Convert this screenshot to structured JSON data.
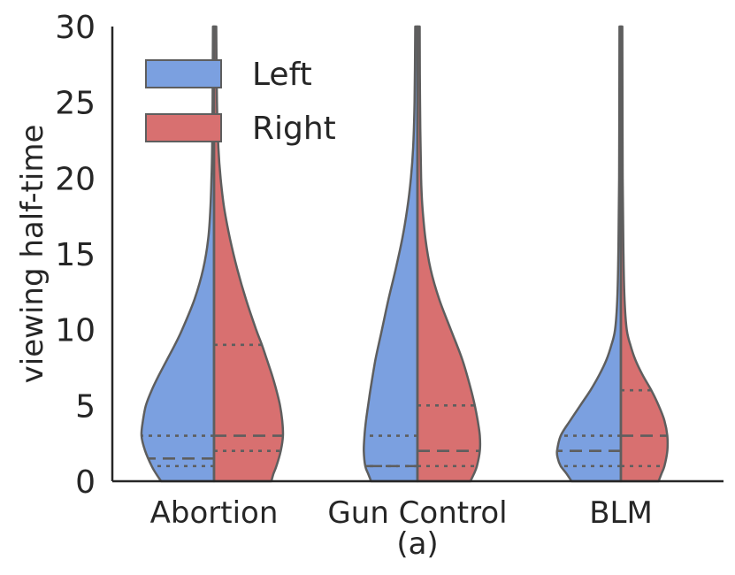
{
  "chart_data": {
    "type": "violin",
    "title": "",
    "subcaption": "(a)",
    "ylabel": "viewing half-time",
    "xlabel": "",
    "ylim": [
      0,
      30
    ],
    "yticks": [
      0,
      5,
      10,
      15,
      20,
      25,
      30
    ],
    "categories": [
      "Abortion",
      "Gun Control",
      "BLM"
    ],
    "legend": {
      "placement": "top-left",
      "entries": [
        {
          "name": "Left",
          "color": "#7ba0e0"
        },
        {
          "name": "Right",
          "color": "#d87070"
        }
      ]
    },
    "series": [
      {
        "name": "Left",
        "color": "#7ba0e0",
        "side": "left",
        "groups": [
          {
            "category": "Abortion",
            "quartiles": {
              "q1": 1.0,
              "median": 1.5,
              "q3": 3.0
            },
            "profile": [
              [
                0,
                0.73
              ],
              [
                0.5,
                0.8
              ],
              [
                1,
                0.86
              ],
              [
                2,
                0.95
              ],
              [
                3,
                1.0
              ],
              [
                4,
                0.98
              ],
              [
                5,
                0.94
              ],
              [
                6,
                0.86
              ],
              [
                7,
                0.76
              ],
              [
                8,
                0.65
              ],
              [
                9,
                0.54
              ],
              [
                10,
                0.44
              ],
              [
                12,
                0.27
              ],
              [
                14,
                0.15
              ],
              [
                16,
                0.08
              ],
              [
                18,
                0.05
              ],
              [
                20,
                0.035
              ],
              [
                22,
                0.025
              ],
              [
                25,
                0.02
              ],
              [
                30,
                0.015
              ]
            ]
          },
          {
            "category": "Gun Control",
            "quartiles": {
              "q1": 1.0,
              "median": 1.0,
              "q3": 3.0
            },
            "profile": [
              [
                0,
                0.64
              ],
              [
                0.5,
                0.68
              ],
              [
                1,
                0.72
              ],
              [
                2,
                0.74
              ],
              [
                3,
                0.73
              ],
              [
                4,
                0.71
              ],
              [
                5,
                0.68
              ],
              [
                6,
                0.65
              ],
              [
                8,
                0.58
              ],
              [
                10,
                0.49
              ],
              [
                12,
                0.4
              ],
              [
                14,
                0.3
              ],
              [
                16,
                0.21
              ],
              [
                18,
                0.14
              ],
              [
                20,
                0.09
              ],
              [
                22,
                0.06
              ],
              [
                25,
                0.04
              ],
              [
                30,
                0.03
              ]
            ]
          },
          {
            "category": "BLM",
            "quartiles": {
              "q1": 1.0,
              "median": 2.0,
              "q3": 3.0
            },
            "profile": [
              [
                0,
                0.68
              ],
              [
                0.5,
                0.75
              ],
              [
                1,
                0.83
              ],
              [
                1.5,
                0.87
              ],
              [
                2,
                0.88
              ],
              [
                3,
                0.83
              ],
              [
                4,
                0.7
              ],
              [
                5,
                0.56
              ],
              [
                6,
                0.42
              ],
              [
                7,
                0.3
              ],
              [
                8,
                0.2
              ],
              [
                9,
                0.13
              ],
              [
                10,
                0.08
              ],
              [
                12,
                0.05
              ],
              [
                15,
                0.035
              ],
              [
                20,
                0.025
              ],
              [
                30,
                0.02
              ]
            ]
          }
        ]
      },
      {
        "name": "Right",
        "color": "#d87070",
        "side": "right",
        "groups": [
          {
            "category": "Abortion",
            "quartiles": {
              "q1": 2.0,
              "median": 3.0,
              "q3": 9.0
            },
            "profile": [
              [
                0,
                0.79
              ],
              [
                0.5,
                0.82
              ],
              [
                1,
                0.86
              ],
              [
                2,
                0.92
              ],
              [
                3,
                0.95
              ],
              [
                4,
                0.94
              ],
              [
                5,
                0.91
              ],
              [
                6,
                0.86
              ],
              [
                7,
                0.8
              ],
              [
                8,
                0.73
              ],
              [
                9,
                0.66
              ],
              [
                10,
                0.58
              ],
              [
                12,
                0.44
              ],
              [
                14,
                0.32
              ],
              [
                16,
                0.22
              ],
              [
                18,
                0.14
              ],
              [
                20,
                0.09
              ],
              [
                22,
                0.06
              ],
              [
                25,
                0.04
              ],
              [
                30,
                0.03
              ]
            ]
          },
          {
            "category": "Gun Control",
            "quartiles": {
              "q1": 1.0,
              "median": 2.0,
              "q3": 5.0
            },
            "profile": [
              [
                0,
                0.73
              ],
              [
                0.5,
                0.78
              ],
              [
                1,
                0.82
              ],
              [
                2,
                0.86
              ],
              [
                3,
                0.86
              ],
              [
                4,
                0.83
              ],
              [
                5,
                0.79
              ],
              [
                6,
                0.74
              ],
              [
                8,
                0.62
              ],
              [
                10,
                0.46
              ],
              [
                12,
                0.3
              ],
              [
                14,
                0.18
              ],
              [
                16,
                0.11
              ],
              [
                18,
                0.07
              ],
              [
                20,
                0.05
              ],
              [
                25,
                0.035
              ],
              [
                30,
                0.03
              ]
            ]
          },
          {
            "category": "BLM",
            "quartiles": {
              "q1": 1.0,
              "median": 3.0,
              "q3": 6.0
            },
            "profile": [
              [
                0,
                0.52
              ],
              [
                0.5,
                0.56
              ],
              [
                1,
                0.6
              ],
              [
                2,
                0.64
              ],
              [
                3,
                0.64
              ],
              [
                4,
                0.6
              ],
              [
                5,
                0.52
              ],
              [
                6,
                0.42
              ],
              [
                7,
                0.3
              ],
              [
                8,
                0.2
              ],
              [
                9,
                0.13
              ],
              [
                10,
                0.08
              ],
              [
                12,
                0.05
              ],
              [
                15,
                0.035
              ],
              [
                20,
                0.025
              ],
              [
                30,
                0.02
              ]
            ]
          }
        ]
      }
    ]
  }
}
